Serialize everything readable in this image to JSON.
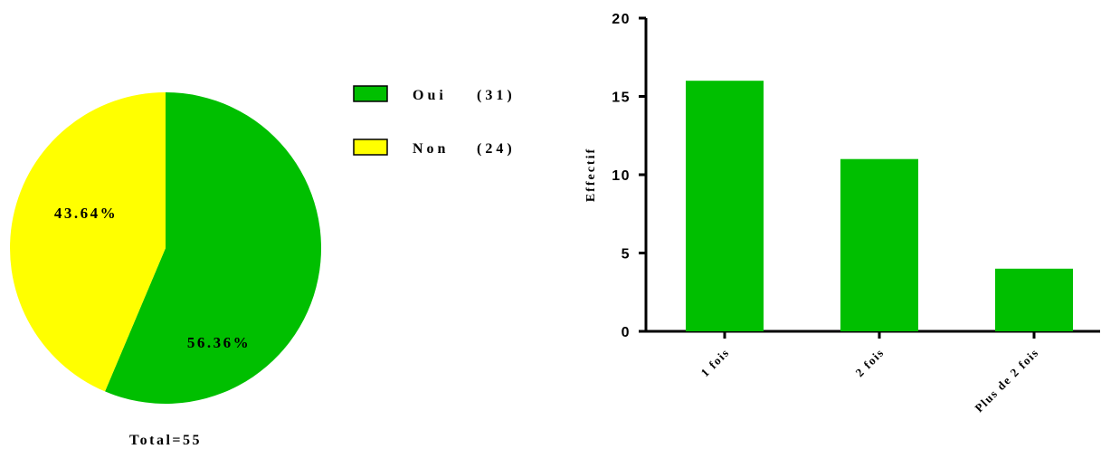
{
  "chart_data": [
    {
      "type": "pie",
      "labels": [
        "Oui (31)",
        "Non (24)"
      ],
      "values": [
        31,
        24
      ],
      "percent_labels": [
        "56.36%",
        "43.64%"
      ],
      "colors": [
        "#00BF00",
        "#FFFF00"
      ],
      "legend": [
        {
          "name": "Oui",
          "count": "(31)"
        },
        {
          "name": "Non",
          "count": "(24)"
        }
      ],
      "legend_position": "right",
      "total_label": "Total=55"
    },
    {
      "type": "bar",
      "categories": [
        "1 fois",
        "2 fois",
        "Plus de 2 fois"
      ],
      "values": [
        16,
        11,
        4
      ],
      "ylabel": "Effectif",
      "xlabel": "",
      "ylim": [
        0,
        20
      ],
      "yticks": [
        0,
        5,
        10,
        15,
        20
      ],
      "color": "#00BF00",
      "grid": false
    }
  ]
}
